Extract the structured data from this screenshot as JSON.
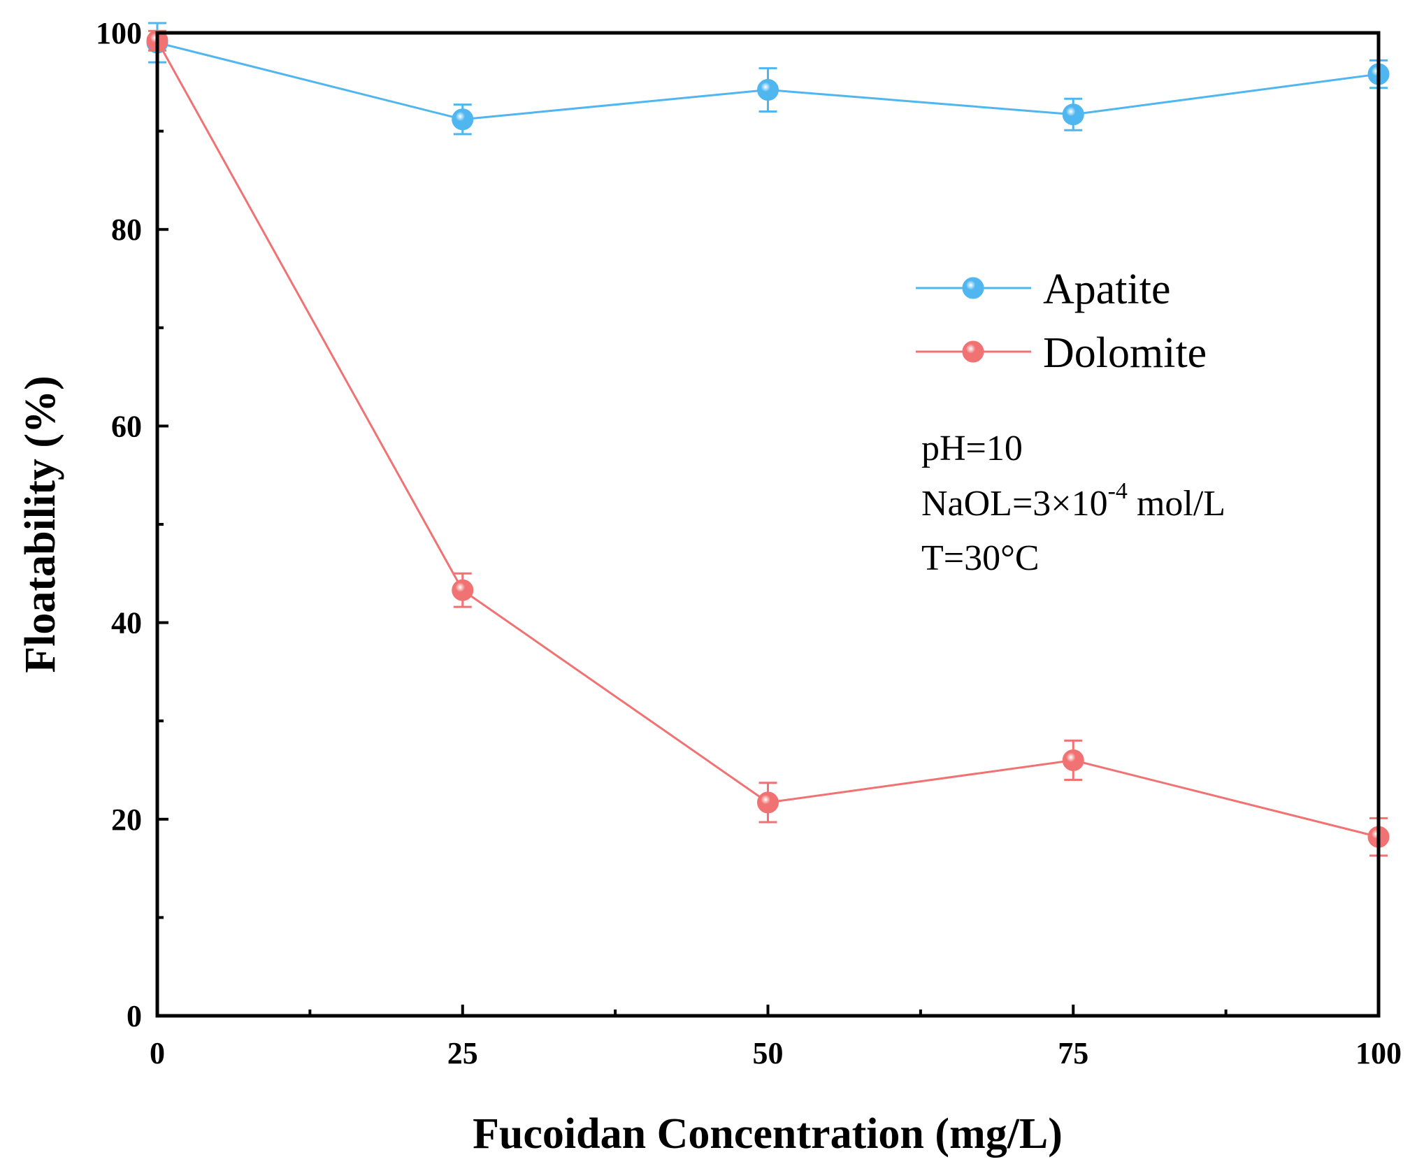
{
  "chart_data": {
    "type": "line",
    "title": "",
    "xlabel": "Fucoidan Concentration (mg/L)",
    "ylabel": "Floatability (%)",
    "xlim": [
      0,
      100
    ],
    "ylim": [
      0,
      100
    ],
    "xticks": [
      0,
      25,
      50,
      75,
      100
    ],
    "yticks": [
      0,
      20,
      40,
      60,
      80,
      100
    ],
    "x": [
      0,
      25,
      50,
      75,
      100
    ],
    "series": [
      {
        "name": "Apatite",
        "color": "#4fb6f0",
        "values": [
          99,
          91.2,
          94.2,
          91.7,
          95.8
        ],
        "errors": [
          2.0,
          1.5,
          2.2,
          1.6,
          1.4
        ]
      },
      {
        "name": "Dolomite",
        "color": "#f07272",
        "values": [
          99.2,
          43.3,
          21.7,
          26,
          18.2
        ],
        "errors": [
          1.0,
          1.7,
          2.0,
          2.0,
          1.9
        ]
      }
    ],
    "legend_position": "upper-right",
    "annotations": {
      "ph": "pH=10",
      "naol_prefix": "NaOL=3×10",
      "naol_exp": "-4",
      "naol_suffix": " mol/L",
      "temp": "T=30°C"
    }
  }
}
